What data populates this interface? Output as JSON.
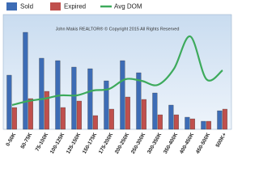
{
  "chart_data": {
    "type": "bar",
    "annotation": "John Makis REALTOR® © Copyright 2015 All Rights Reserved",
    "categories": [
      "0-50K",
      "50-75K",
      "75-100K",
      "100-125K",
      "125-150K",
      "150-175K",
      "175-200K",
      "200-250K",
      "250-300K",
      "300-350K",
      "350-400K",
      "400-450K",
      "450-500K",
      "500K+"
    ],
    "series": [
      {
        "name": "Sold",
        "color": "#3d6cb5",
        "kind": "bar",
        "values": [
          67,
          120,
          88,
          85,
          77,
          75,
          60,
          85,
          70,
          45,
          30,
          15,
          10,
          23
        ]
      },
      {
        "name": "Expired",
        "color": "#c0504d",
        "kind": "bar",
        "values": [
          27,
          38,
          47,
          27,
          35,
          17,
          25,
          40,
          37,
          18,
          18,
          13,
          10,
          25
        ]
      },
      {
        "name": "Avg DOM",
        "color": "#3daa5c",
        "kind": "line",
        "values": [
          30,
          35,
          38,
          42,
          42,
          48,
          50,
          62,
          60,
          55,
          75,
          115,
          62,
          73
        ]
      }
    ],
    "ylim": [
      0,
      140
    ]
  }
}
